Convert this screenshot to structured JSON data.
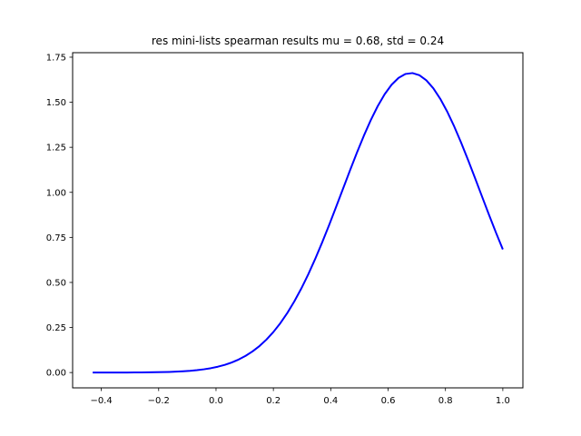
{
  "chart_data": {
    "type": "line",
    "title": "res mini-lists spearman results mu = 0.68,  std = 0.24",
    "xlabel": "",
    "ylabel": "",
    "xlim": [
      -0.5,
      1.07
    ],
    "ylim": [
      -0.085,
      1.775
    ],
    "x_ticks": [
      -0.4,
      -0.2,
      0.0,
      0.2,
      0.4,
      0.6,
      0.8,
      1.0
    ],
    "x_tick_labels": [
      "−0.4",
      "−0.2",
      "0.0",
      "0.2",
      "0.4",
      "0.6",
      "0.8",
      "1.0"
    ],
    "y_ticks": [
      0.0,
      0.25,
      0.5,
      0.75,
      1.0,
      1.25,
      1.5,
      1.75
    ],
    "y_tick_labels": [
      "0.00",
      "0.25",
      "0.50",
      "0.75",
      "1.00",
      "1.25",
      "1.50",
      "1.75"
    ],
    "grid": false,
    "series": [
      {
        "color": "#0000ff",
        "distribution": {
          "mu": 0.68,
          "std": 0.24
        },
        "x_range": [
          -0.43,
          1.0
        ],
        "points": 60
      }
    ]
  }
}
